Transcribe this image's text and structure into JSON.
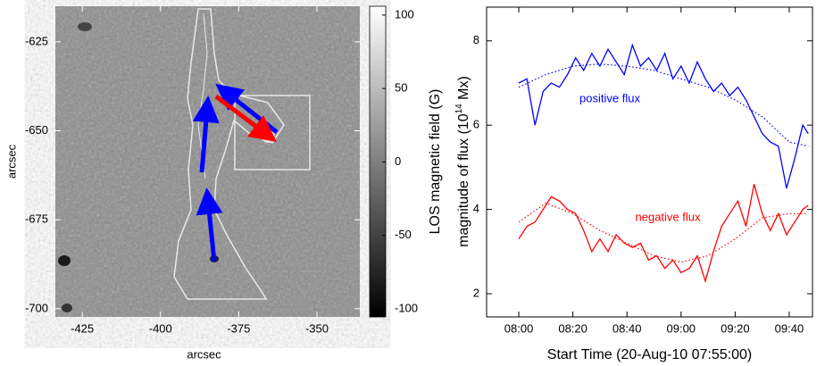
{
  "chart_data": [
    {
      "type": "image",
      "x_label": "arcsec",
      "y_label": "arcsec",
      "xlim": [
        -433.6,
        -336.3
      ],
      "ylim": [
        -702.3,
        -615.0
      ],
      "xticks": [
        -425,
        -400,
        -375,
        -350
      ],
      "yticks": [
        -625,
        -650,
        -675,
        -700
      ],
      "colorbar": {
        "label": "LOS magnetic field (G)",
        "lim": [
          -105.5,
          106
        ],
        "ticks": [
          100,
          50,
          0,
          -50,
          -100
        ]
      }
    },
    {
      "type": "line",
      "x_label": "Start Time (20-Aug-10 07:55:00)",
      "y_label": [
        "magnitude of flux (10",
        "14",
        " Mx)"
      ],
      "xlim": [
        468.1,
        588.6
      ],
      "ylim": [
        1.45,
        8.8
      ],
      "xticks": [
        {
          "value": 480,
          "label": "08:00"
        },
        {
          "value": 500,
          "label": "08:20"
        },
        {
          "value": 520,
          "label": "08:40"
        },
        {
          "value": 540,
          "label": "09:00"
        },
        {
          "value": 560,
          "label": "09:20"
        },
        {
          "value": 580,
          "label": "09:40"
        }
      ],
      "yticks": [
        2,
        4,
        6,
        8
      ],
      "annotations": [
        {
          "text": "positive flux",
          "color": "#0000ff"
        },
        {
          "text": "negative flux",
          "color": "#ff0000"
        }
      ],
      "series": [
        {
          "color": "#0000ff",
          "dash": false,
          "x": [
            480,
            483,
            486,
            489,
            492,
            495,
            498,
            501,
            504,
            507,
            510,
            513,
            516,
            519,
            522,
            525,
            528,
            531,
            534,
            537,
            540,
            543,
            546,
            549,
            552,
            555,
            558,
            561,
            564,
            567,
            570,
            573,
            576,
            579,
            582,
            585,
            587
          ],
          "values": [
            7.0,
            7.1,
            6.0,
            6.8,
            7.0,
            6.9,
            7.2,
            7.6,
            7.3,
            7.7,
            7.4,
            7.8,
            7.5,
            7.2,
            7.9,
            7.4,
            7.6,
            7.3,
            7.7,
            7.1,
            7.4,
            7.0,
            7.5,
            7.1,
            6.8,
            7.0,
            6.7,
            6.9,
            6.6,
            6.2,
            5.8,
            5.6,
            5.5,
            4.5,
            5.2,
            6.0,
            5.8
          ]
        },
        {
          "color": "#ff0000",
          "dash": false,
          "x": [
            480,
            483,
            486,
            489,
            492,
            495,
            498,
            501,
            504,
            507,
            510,
            513,
            516,
            519,
            522,
            525,
            528,
            531,
            534,
            537,
            540,
            543,
            546,
            549,
            552,
            555,
            558,
            561,
            564,
            567,
            570,
            573,
            576,
            579,
            582,
            585,
            587
          ],
          "values": [
            3.3,
            3.6,
            3.7,
            4.0,
            4.3,
            4.2,
            4.0,
            3.9,
            3.5,
            3.0,
            3.3,
            3.0,
            3.4,
            3.2,
            3.1,
            3.2,
            2.8,
            2.9,
            2.6,
            2.8,
            2.5,
            2.6,
            2.9,
            2.3,
            3.0,
            3.6,
            3.9,
            4.2,
            3.6,
            4.6,
            3.9,
            3.5,
            3.9,
            3.4,
            3.7,
            4.0,
            4.1
          ]
        },
        {
          "color": "#0000ff",
          "dash": true,
          "x": [
            480,
            490,
            500,
            510,
            520,
            530,
            540,
            550,
            560,
            570,
            580,
            587
          ],
          "values": [
            6.9,
            7.2,
            7.4,
            7.45,
            7.4,
            7.3,
            7.1,
            6.9,
            6.6,
            6.2,
            5.6,
            5.5
          ]
        },
        {
          "color": "#ff0000",
          "dash": true,
          "x": [
            480,
            490,
            500,
            510,
            520,
            530,
            540,
            550,
            560,
            570,
            580,
            587
          ],
          "values": [
            3.7,
            4.15,
            3.9,
            3.5,
            3.2,
            2.9,
            2.75,
            2.9,
            3.3,
            3.8,
            3.9,
            3.9
          ]
        }
      ]
    }
  ]
}
